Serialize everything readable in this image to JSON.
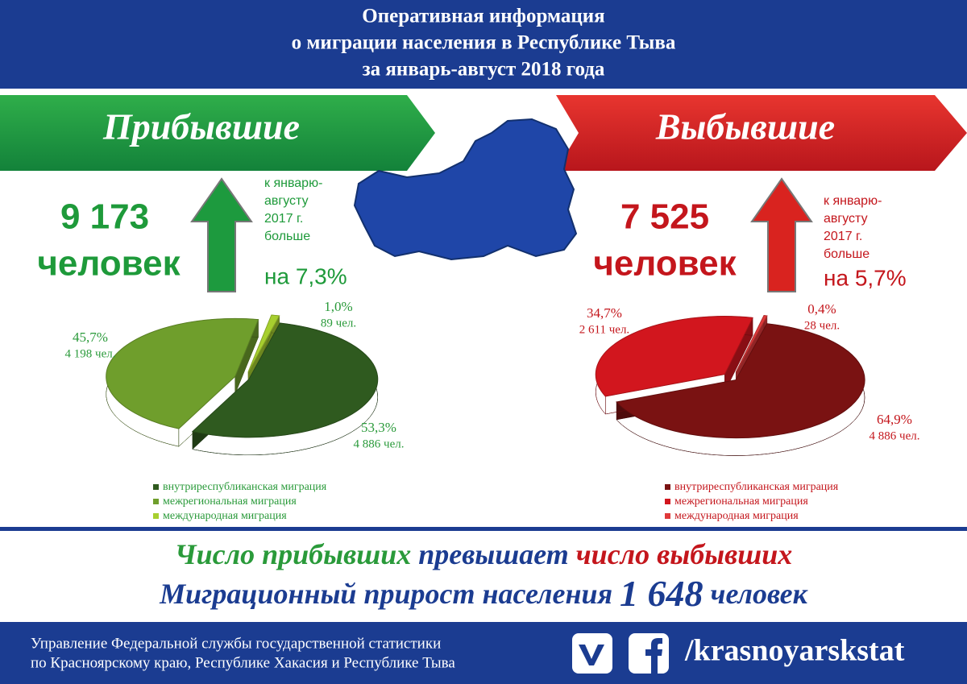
{
  "header": {
    "title_lines": [
      "Оперативная информация",
      "о миграции населения в Республике Тыва",
      "за январь-август 2018 года"
    ]
  },
  "arrivals": {
    "heading": "Прибывшие",
    "total_number": "9 173",
    "total_unit": "человек",
    "comparison_lines": [
      "к январю-",
      "августу",
      "2017 г.",
      "больше"
    ],
    "comparison_value": "на 7,3%"
  },
  "departures": {
    "heading": "Выбывшие",
    "total_number": "7 525",
    "total_unit": "человек",
    "comparison_lines": [
      "к январю-",
      "августу",
      "2017 г.",
      "больше"
    ],
    "comparison_value": "на 5,7%"
  },
  "chart_data": [
    {
      "type": "pie",
      "categories": [
        "внутриреспубликанская миграция",
        "межрегиональная миграция",
        "международная миграция"
      ],
      "values": [
        53.3,
        45.7,
        1.0
      ],
      "value_labels": [
        "53,3%",
        "45,7%",
        "1,0%"
      ],
      "counts": [
        4886,
        4198,
        89
      ],
      "count_labels": [
        "4 886 чел.",
        "4 198 чел.",
        "89 чел."
      ],
      "colors": [
        "#2f5a1f",
        "#6f9e2c",
        "#a7cf2f"
      ],
      "label_color": "#2a9a3a"
    },
    {
      "type": "pie",
      "categories": [
        "внутриреспубликанская миграция",
        "межрегиональная миграция",
        "международная миграция"
      ],
      "values": [
        64.9,
        34.7,
        0.4
      ],
      "value_labels": [
        "64,9%",
        "34,7%",
        "0,4%"
      ],
      "counts": [
        4886,
        2611,
        28
      ],
      "count_labels": [
        "4 886 чел.",
        "2 611 чел.",
        "28 чел."
      ],
      "colors": [
        "#7a1212",
        "#d2161e",
        "#e0393a"
      ],
      "label_color": "#c4161c"
    }
  ],
  "summary": {
    "line1_parts": [
      "Число прибывших",
      "превышает",
      "число выбывших"
    ],
    "line2_parts": [
      "Миграционный прирост населения",
      "1 648",
      "человек"
    ]
  },
  "footer": {
    "org_lines": [
      "Управление Федеральной службы государственной статистики",
      "по Красноярскому краю, Республике Хакасия и Республике Тыва"
    ],
    "social_handle": "/krasnoyarskstat"
  }
}
